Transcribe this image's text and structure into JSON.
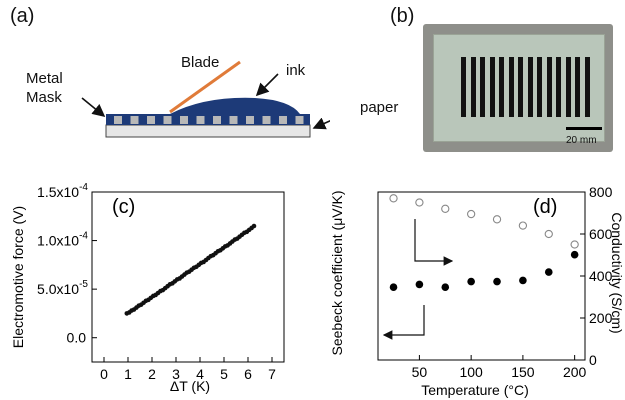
{
  "panels": {
    "a": "(a)",
    "b": "(b)",
    "c": "(c)",
    "d": "(d)"
  },
  "schematic": {
    "blade": "Blade",
    "ink": "ink",
    "metal_mask_line1": "Metal",
    "metal_mask_line2": "Mask",
    "paper": "paper",
    "colors": {
      "mask": "#1d3a78",
      "blade": "#e07b39",
      "substrate": "#e6e6e6"
    }
  },
  "photo": {
    "scale_label": "20 mm",
    "stripe_count": 14
  },
  "chart_data": [
    {
      "type": "scatter",
      "panel": "(c)",
      "xlabel": "ΔT (K)",
      "ylabel": "Electromotive force (V)",
      "xlim": [
        -0.5,
        7.5
      ],
      "ylim": [
        -2.5e-05,
        0.00015
      ],
      "x_ticks": [
        0,
        1,
        2,
        3,
        4,
        5,
        6,
        7
      ],
      "y_ticks": [
        0.0,
        5e-05,
        0.0001,
        0.00015
      ],
      "y_tick_labels": [
        "0.0",
        "5.0x10",
        "1.0x10",
        "1.5x10"
      ],
      "y_tick_exps": [
        "",
        "-5",
        "-4",
        "-4"
      ],
      "series": [
        {
          "x": [
            0.95,
            1.05,
            1.15,
            1.25,
            1.35,
            1.45,
            1.55,
            1.65,
            1.75,
            1.85,
            1.95,
            2.05,
            2.15,
            2.25,
            2.35,
            2.45,
            2.55,
            2.65,
            2.75,
            2.85,
            2.95,
            3.05,
            3.15,
            3.25,
            3.35,
            3.45,
            3.55,
            3.65,
            3.75,
            3.85,
            3.95,
            4.05,
            4.15,
            4.25,
            4.35,
            4.45,
            4.55,
            4.65,
            4.75,
            4.85,
            4.95,
            5.05,
            5.15,
            5.25,
            5.35,
            5.45,
            5.55,
            5.65,
            5.75,
            5.85,
            5.95,
            6.05,
            6.15,
            6.25
          ],
          "y": [
            2.5e-05,
            2.6e-05,
            2.8e-05,
            2.9e-05,
            3.1e-05,
            3.3e-05,
            3.4e-05,
            3.6e-05,
            3.8e-05,
            3.9e-05,
            4.1e-05,
            4.3e-05,
            4.4e-05,
            4.6e-05,
            4.8e-05,
            4.9e-05,
            5.1e-05,
            5.3e-05,
            5.5e-05,
            5.6e-05,
            5.8e-05,
            6e-05,
            6.1e-05,
            6.3e-05,
            6.5e-05,
            6.7e-05,
            6.8e-05,
            7e-05,
            7.2e-05,
            7.3e-05,
            7.5e-05,
            7.7e-05,
            7.8e-05,
            8e-05,
            8.2e-05,
            8.4e-05,
            8.5e-05,
            8.7e-05,
            8.9e-05,
            9e-05,
            9.2e-05,
            9.4e-05,
            9.5e-05,
            9.7e-05,
            9.9e-05,
            0.000101,
            0.000102,
            0.000104,
            0.000106,
            0.000108,
            0.000109,
            0.000111,
            0.000113,
            0.000115
          ]
        }
      ]
    },
    {
      "type": "scatter",
      "panel": "(d)",
      "xlabel": "Temperature (°C)",
      "ylabel": "Seebeck coefficient (μV/K)",
      "y2label": "Conductivity (S/cm)",
      "xlim": [
        10,
        210
      ],
      "ylim": [
        0,
        30
      ],
      "y2lim": [
        0,
        800
      ],
      "x_ticks": [
        50,
        100,
        150,
        200
      ],
      "y2_ticks": [
        0,
        200,
        400,
        600,
        800
      ],
      "series": [
        {
          "marker": "filled",
          "axis": "left",
          "x": [
            25,
            50,
            75,
            100,
            125,
            150,
            175,
            200
          ],
          "y": [
            13,
            13.5,
            13,
            14,
            14,
            14.2,
            15.7,
            18.8
          ]
        },
        {
          "marker": "open",
          "axis": "right",
          "x": [
            25,
            50,
            75,
            100,
            125,
            150,
            175,
            200
          ],
          "y": [
            770,
            750,
            720,
            695,
            670,
            640,
            600,
            550
          ]
        }
      ]
    }
  ]
}
